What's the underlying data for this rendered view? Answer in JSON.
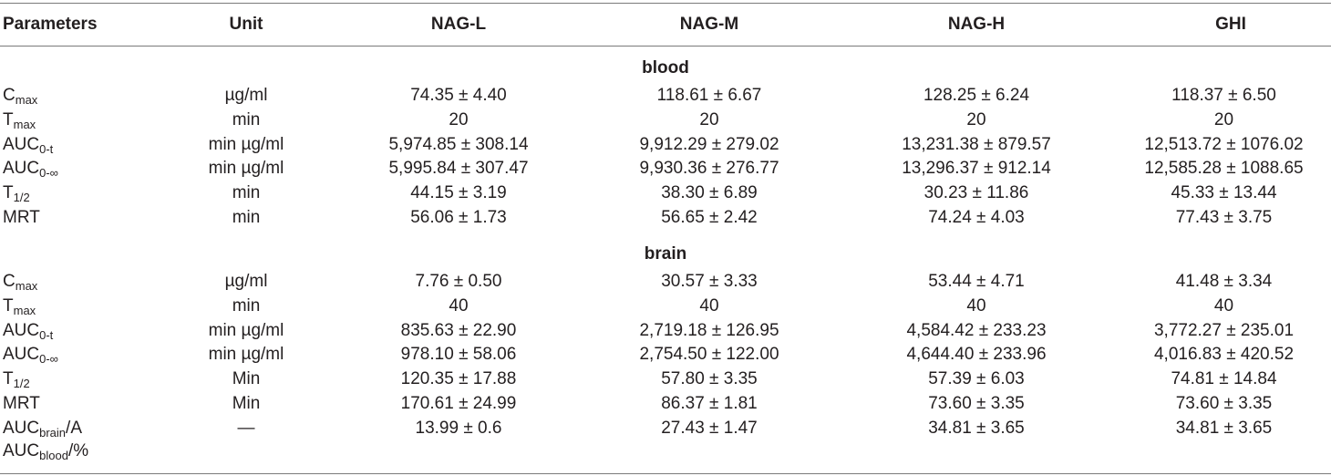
{
  "headers": [
    "Parameters",
    "Unit",
    "NAG-L",
    "NAG-M",
    "NAG-H",
    "GHI"
  ],
  "sections": [
    {
      "title": "blood",
      "rows": [
        {
          "param": "C",
          "sub": "max",
          "unit": "µg/ml",
          "values": [
            "74.35 ± 4.40",
            "118.61 ± 6.67",
            "128.25 ± 6.24",
            "118.37 ± 6.50"
          ]
        },
        {
          "param": "T",
          "sub": "max",
          "unit": "min",
          "values": [
            "20",
            "20",
            "20",
            "20"
          ]
        },
        {
          "param": "AUC",
          "sub": "0-t",
          "unit": "min µg/ml",
          "values": [
            "5,974.85 ± 308.14",
            "9,912.29 ± 279.02",
            "13,231.38 ± 879.57",
            "12,513.72 ± 1076.02"
          ]
        },
        {
          "param": "AUC",
          "sub": "0-∞",
          "unit": "min µg/ml",
          "values": [
            "5,995.84 ± 307.47",
            "9,930.36 ± 276.77",
            "13,296.37 ± 912.14",
            "12,585.28 ± 1088.65"
          ]
        },
        {
          "param": "T",
          "sub": "1/2",
          "unit": "min",
          "values": [
            "44.15 ± 3.19",
            "38.30 ± 6.89",
            "30.23 ± 11.86",
            "45.33 ± 13.44"
          ]
        },
        {
          "param": "MRT",
          "sub": "",
          "unit": "min",
          "values": [
            "56.06 ± 1.73",
            "56.65 ± 2.42",
            "74.24 ± 4.03",
            "77.43 ± 3.75"
          ]
        }
      ]
    },
    {
      "title": "brain",
      "rows": [
        {
          "param": "C",
          "sub": "max",
          "unit": "µg/ml",
          "values": [
            "7.76 ± 0.50",
            "30.57 ± 3.33",
            "53.44 ± 4.71",
            "41.48 ± 3.34"
          ]
        },
        {
          "param": "T",
          "sub": "max",
          "unit": "min",
          "values": [
            "40",
            "40",
            "40",
            "40"
          ]
        },
        {
          "param": "AUC",
          "sub": "0-t",
          "unit": "min µg/ml",
          "values": [
            "835.63 ± 22.90",
            "2,719.18 ± 126.95",
            "4,584.42 ± 233.23",
            "3,772.27 ± 235.01"
          ]
        },
        {
          "param": "AUC",
          "sub": "0-∞",
          "unit": "min µg/ml",
          "values": [
            "978.10 ± 58.06",
            "2,754.50 ± 122.00",
            "4,644.40 ± 233.96",
            "4,016.83 ± 420.52"
          ]
        },
        {
          "param": "T",
          "sub": "1/2",
          "unit": "Min",
          "values": [
            "120.35 ± 17.88",
            "57.80 ± 3.35",
            "57.39 ± 6.03",
            "74.81 ± 14.84"
          ]
        },
        {
          "param": "MRT",
          "sub": "",
          "unit": "Min",
          "values": [
            "170.61 ± 24.99",
            "86.37 ± 1.81",
            "73.60 ± 3.35",
            "73.60 ± 3.35"
          ]
        },
        {
          "param": "AUC",
          "sub": "brain",
          "suffix": "/A",
          "unit": "—",
          "values": [
            "13.99 ± 0.6",
            "27.43 ± 1.47",
            "34.81 ± 3.65",
            "34.81 ± 3.65"
          ]
        }
      ]
    }
  ],
  "ratio_second_line": {
    "param": "AUC",
    "sub": "blood",
    "suffix": "/%"
  }
}
